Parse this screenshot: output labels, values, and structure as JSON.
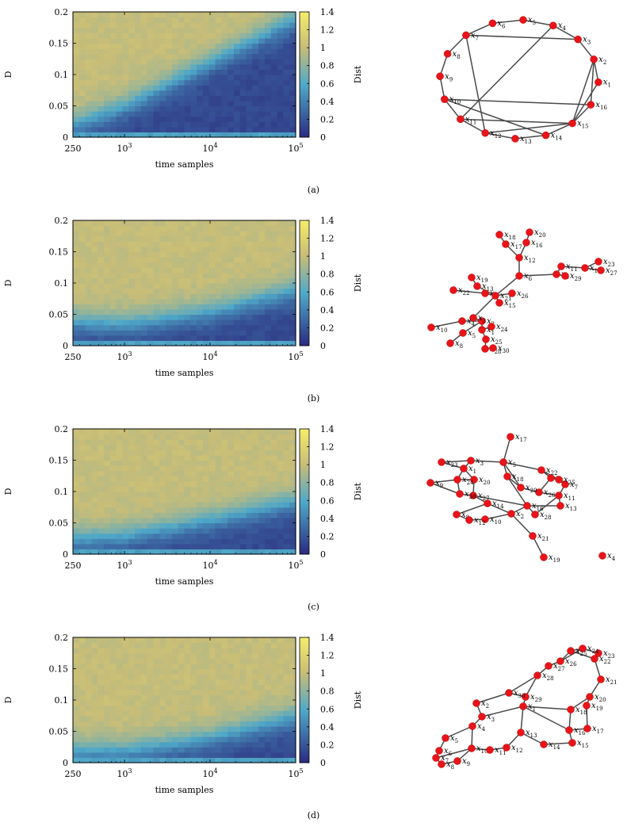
{
  "figure": {
    "colorbar_label": "Dist",
    "colorbar_ticks": [
      "0",
      "0.2",
      "0.4",
      "0.6",
      "0.8",
      "1",
      "1.2",
      "1.4"
    ],
    "y_ticks": [
      "0",
      "0.05",
      "0.1",
      "0.15",
      "0.2"
    ],
    "x_ticks": [
      {
        "base": "250",
        "exp": ""
      },
      {
        "base": "10",
        "exp": "3"
      },
      {
        "base": "10",
        "exp": "4"
      },
      {
        "base": "10",
        "exp": "5"
      }
    ],
    "colors": {
      "low": "#2b2a7e",
      "mid": "#4fa8c8",
      "high": "#c8bd78",
      "top": "#f4ec6a",
      "node": "#e8141a",
      "edge": "#4a4a4a"
    }
  },
  "chart_data": [
    {
      "type": "heatmap",
      "panel": "(a)",
      "xlabel": "time samples",
      "ylabel": "D",
      "zlabel": "Dist",
      "xscale": "log",
      "xlim": [
        250,
        100000
      ],
      "ylim": [
        0,
        0.2
      ],
      "zlim": [
        0,
        1.4
      ],
      "boundary_D_at_x": [
        [
          250,
          0.02
        ],
        [
          1000,
          0.05
        ],
        [
          10000,
          0.12
        ],
        [
          100000,
          0.19
        ]
      ],
      "description": "Dist is low (about 0.1-0.2) below the boundary and about 1.0 above it",
      "network": {
        "layout": "circle",
        "nodes": [
          "1",
          "2",
          "3",
          "4",
          "5",
          "6",
          "7",
          "8",
          "9",
          "10",
          "11",
          "12",
          "13",
          "14",
          "15",
          "16"
        ],
        "edges": [
          [
            1,
            2
          ],
          [
            2,
            3
          ],
          [
            3,
            4
          ],
          [
            4,
            5
          ],
          [
            5,
            6
          ],
          [
            6,
            7
          ],
          [
            7,
            8
          ],
          [
            8,
            9
          ],
          [
            9,
            10
          ],
          [
            10,
            11
          ],
          [
            11,
            12
          ],
          [
            12,
            13
          ],
          [
            13,
            14
          ],
          [
            14,
            15
          ],
          [
            15,
            16
          ],
          [
            16,
            2
          ],
          [
            1,
            15
          ],
          [
            2,
            15
          ],
          [
            3,
            7
          ],
          [
            4,
            11
          ],
          [
            7,
            12
          ],
          [
            10,
            14
          ],
          [
            10,
            16
          ],
          [
            11,
            15
          ],
          [
            12,
            15
          ]
        ]
      }
    },
    {
      "type": "heatmap",
      "panel": "(b)",
      "xlabel": "time samples",
      "ylabel": "D",
      "zlabel": "Dist",
      "xscale": "log",
      "xlim": [
        250,
        100000
      ],
      "ylim": [
        0,
        0.2
      ],
      "zlim": [
        0,
        1.4
      ],
      "boundary_D_at_x": [
        [
          250,
          0.04
        ],
        [
          1000,
          0.035
        ],
        [
          10000,
          0.055
        ],
        [
          100000,
          0.09
        ]
      ],
      "description": "Dist is low below the boundary and about 1.0 above it",
      "network": {
        "layout": "tree",
        "nodes": [
          "1",
          "2",
          "3",
          "4",
          "5",
          "6",
          "7",
          "8",
          "9",
          "10",
          "11",
          "12",
          "13",
          "14",
          "15",
          "16",
          "17",
          "18",
          "19",
          "20",
          "21",
          "22",
          "23",
          "24",
          "25",
          "26",
          "27",
          "28",
          "29",
          "30"
        ],
        "edges": [
          [
            18,
            17
          ],
          [
            20,
            16
          ],
          [
            17,
            12
          ],
          [
            16,
            12
          ],
          [
            12,
            6
          ],
          [
            6,
            9
          ],
          [
            9,
            11
          ],
          [
            11,
            14
          ],
          [
            14,
            23
          ],
          [
            14,
            27
          ],
          [
            9,
            29
          ],
          [
            6,
            21
          ],
          [
            21,
            13
          ],
          [
            13,
            19
          ],
          [
            21,
            26
          ],
          [
            21,
            15
          ],
          [
            21,
            7
          ],
          [
            7,
            22
          ],
          [
            21,
            3
          ],
          [
            3,
            2
          ],
          [
            2,
            4
          ],
          [
            4,
            10
          ],
          [
            2,
            1
          ],
          [
            1,
            24
          ],
          [
            2,
            5
          ],
          [
            5,
            8
          ],
          [
            1,
            25
          ],
          [
            25,
            28
          ],
          [
            28,
            30
          ]
        ]
      }
    },
    {
      "type": "heatmap",
      "panel": "(c)",
      "xlabel": "time samples",
      "ylabel": "D",
      "zlabel": "Dist",
      "xscale": "log",
      "xlim": [
        250,
        100000
      ],
      "ylim": [
        0,
        0.2
      ],
      "zlim": [
        0,
        1.4
      ],
      "boundary_D_at_x": [
        [
          250,
          0.025
        ],
        [
          1000,
          0.03
        ],
        [
          10000,
          0.055
        ],
        [
          100000,
          0.085
        ]
      ],
      "description": "Dist is low below the boundary and about 1.0 above it",
      "network": {
        "layout": "random",
        "nodes": [
          "1",
          "2",
          "3",
          "4",
          "5",
          "6",
          "7",
          "8",
          "9",
          "10",
          "11",
          "12",
          "13",
          "14",
          "15",
          "16",
          "17",
          "18",
          "19",
          "20",
          "21",
          "22",
          "23",
          "24",
          "25",
          "26",
          "27",
          "28",
          "29",
          "30"
        ],
        "edges": [
          [
            17,
            5
          ],
          [
            5,
            3
          ],
          [
            5,
            18
          ],
          [
            5,
            29
          ],
          [
            5,
            22
          ],
          [
            3,
            1
          ],
          [
            23,
            3
          ],
          [
            23,
            1
          ],
          [
            1,
            20
          ],
          [
            1,
            24
          ],
          [
            9,
            24
          ],
          [
            24,
            20
          ],
          [
            24,
            30
          ],
          [
            20,
            27
          ],
          [
            30,
            27
          ],
          [
            27,
            14
          ],
          [
            14,
            8
          ],
          [
            8,
            12
          ],
          [
            12,
            10
          ],
          [
            10,
            2
          ],
          [
            14,
            2
          ],
          [
            2,
            21
          ],
          [
            21,
            19
          ],
          [
            18,
            29
          ],
          [
            18,
            16
          ],
          [
            29,
            26
          ],
          [
            26,
            6
          ],
          [
            6,
            22
          ],
          [
            6,
            25
          ],
          [
            25,
            7
          ],
          [
            7,
            11
          ],
          [
            11,
            13
          ],
          [
            13,
            16
          ],
          [
            16,
            2
          ],
          [
            16,
            28
          ],
          [
            28,
            11
          ],
          [
            22,
            25
          ],
          [
            26,
            11
          ],
          [
            27,
            16
          ],
          [
            9,
            30
          ]
        ]
      }
    },
    {
      "type": "heatmap",
      "panel": "(d)",
      "xlabel": "time samples",
      "ylabel": "D",
      "zlabel": "Dist",
      "xscale": "log",
      "xlim": [
        250,
        100000
      ],
      "ylim": [
        0,
        0.2
      ],
      "zlim": [
        0,
        1.4
      ],
      "boundary_D_at_x": [
        [
          250,
          0.02
        ],
        [
          1000,
          0.02
        ],
        [
          10000,
          0.04
        ],
        [
          100000,
          0.075
        ]
      ],
      "description": "Dist is low below the boundary and about 1.0 above it",
      "network": {
        "layout": "ring",
        "nodes": [
          "1",
          "2",
          "3",
          "4",
          "5",
          "6",
          "7",
          "8",
          "9",
          "10",
          "11",
          "12",
          "13",
          "14",
          "15",
          "16",
          "17",
          "18",
          "19",
          "20",
          "21",
          "22",
          "23",
          "24",
          "25",
          "26",
          "27",
          "28",
          "29",
          "30"
        ],
        "edges": [
          [
            24,
            25
          ],
          [
            25,
            26
          ],
          [
            24,
            23
          ],
          [
            23,
            22
          ],
          [
            22,
            21
          ],
          [
            21,
            20
          ],
          [
            20,
            19
          ],
          [
            20,
            18
          ],
          [
            19,
            17
          ],
          [
            17,
            16
          ],
          [
            16,
            15
          ],
          [
            18,
            16
          ],
          [
            18,
            1
          ],
          [
            15,
            14
          ],
          [
            14,
            13
          ],
          [
            13,
            1
          ],
          [
            13,
            12
          ],
          [
            12,
            11
          ],
          [
            11,
            10
          ],
          [
            10,
            9
          ],
          [
            9,
            8
          ],
          [
            8,
            7
          ],
          [
            7,
            6
          ],
          [
            6,
            5
          ],
          [
            5,
            4
          ],
          [
            4,
            3
          ],
          [
            3,
            1
          ],
          [
            3,
            2
          ],
          [
            2,
            30
          ],
          [
            30,
            29
          ],
          [
            29,
            1
          ],
          [
            30,
            28
          ],
          [
            28,
            27
          ],
          [
            27,
            26
          ],
          [
            26,
            24
          ],
          [
            25,
            22
          ],
          [
            29,
            28
          ],
          [
            4,
            10
          ],
          [
            7,
            10
          ],
          [
            1,
            16
          ]
        ]
      }
    }
  ],
  "captions": [
    "(a)",
    "(b)",
    "(c)",
    "(d)"
  ]
}
